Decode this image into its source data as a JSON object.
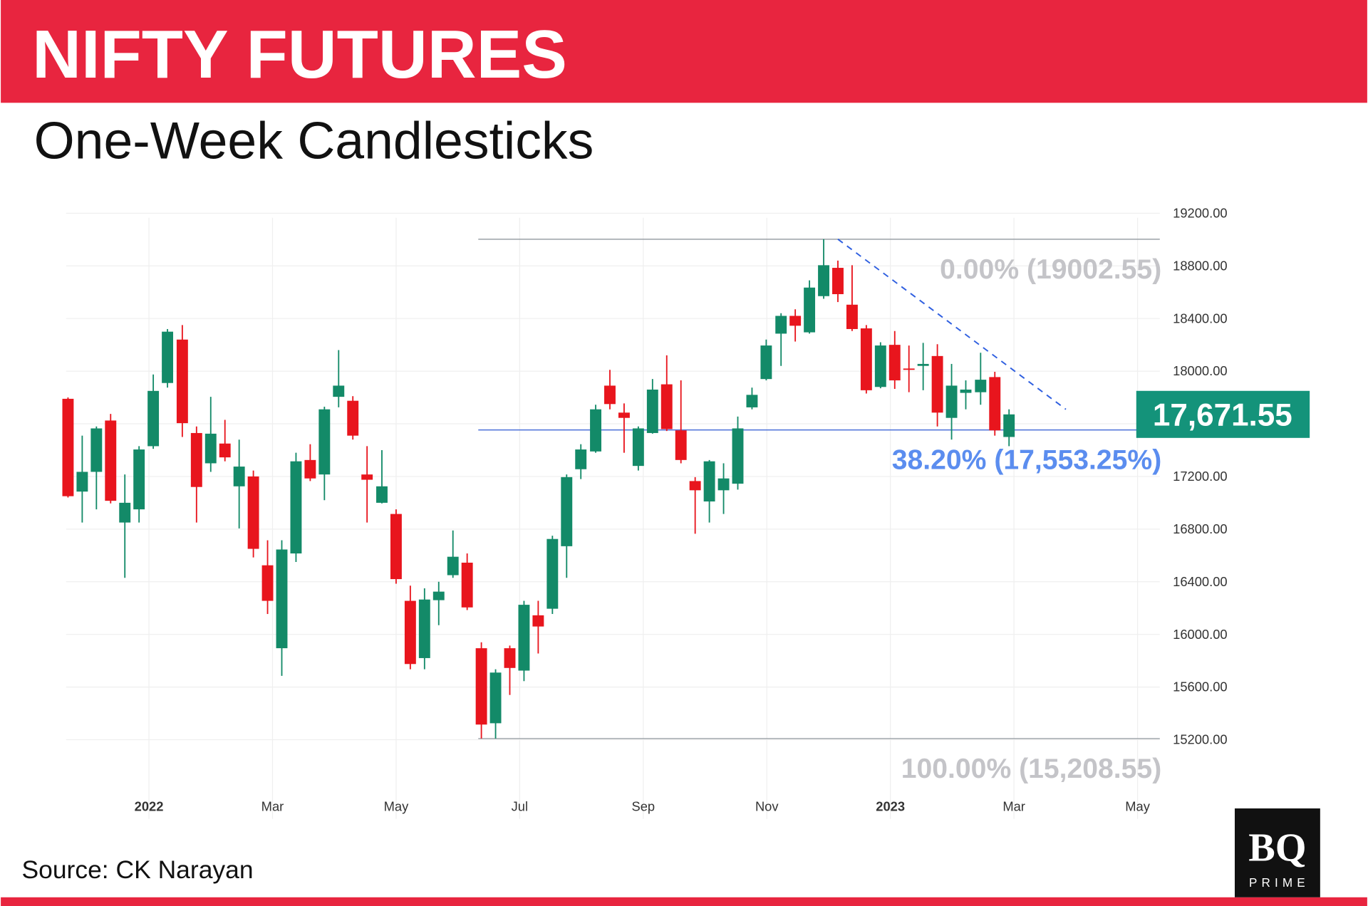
{
  "header": {
    "title": "NIFTY FUTURES",
    "subtitle": "One-Week Candlesticks"
  },
  "source": "Source: CK Narayan",
  "logo": {
    "text": "BQ",
    "sub": "PRIME"
  },
  "chart_data": {
    "type": "candlestick",
    "up_color": "#138a68",
    "down_color": "#e8151d",
    "x": [
      -1.31,
      -1.08,
      -0.85,
      -0.62,
      -0.39,
      -0.16,
      0.07,
      0.3,
      0.54,
      0.77,
      1.0,
      1.23,
      1.46,
      1.69,
      1.92,
      2.15,
      2.38,
      2.61,
      2.84,
      3.07,
      3.3,
      3.53,
      3.77,
      4.0,
      4.23,
      4.46,
      4.69,
      4.92,
      5.15,
      5.38,
      5.61,
      5.84,
      6.07,
      6.3,
      6.53,
      6.76,
      6.99,
      7.23,
      7.46,
      7.69,
      7.92,
      8.15,
      8.38,
      8.61,
      8.84,
      9.07,
      9.3,
      9.53,
      9.76,
      9.99,
      10.23,
      10.46,
      10.69,
      10.92,
      11.15,
      11.38,
      11.61,
      11.84,
      12.07,
      12.3,
      12.53,
      12.76,
      12.99,
      13.22,
      13.46,
      13.69,
      13.92
    ],
    "open": [
      17790,
      17085,
      17235,
      17625,
      16850,
      16950,
      17430,
      17910,
      18240,
      17530,
      17300,
      17450,
      17125,
      17200,
      16525,
      15895,
      16615,
      17325,
      17215,
      17805,
      17775,
      17215,
      17000,
      16915,
      16255,
      15820,
      16260,
      16450,
      16545,
      15895,
      15325,
      15895,
      15725,
      16145,
      16195,
      16670,
      17255,
      17390,
      17890,
      17685,
      17280,
      17530,
      17900,
      17550,
      17165,
      17010,
      17095,
      17145,
      17725,
      17940,
      18285,
      18420,
      18295,
      18570,
      18785,
      18505,
      18325,
      17880,
      18200,
      18020,
      18040,
      18115,
      17645,
      17835,
      17840,
      17955,
      17500
    ],
    "high": [
      17800,
      17510,
      17580,
      17675,
      17215,
      17430,
      17975,
      18320,
      18350,
      17580,
      17805,
      17630,
      17480,
      17245,
      16715,
      16715,
      17380,
      17445,
      17730,
      18160,
      17810,
      17430,
      17400,
      16950,
      16370,
      16350,
      16400,
      16790,
      16615,
      15940,
      15735,
      15915,
      16255,
      16255,
      16750,
      17215,
      17445,
      17745,
      18010,
      17755,
      17580,
      17940,
      18120,
      17930,
      17195,
      17325,
      17300,
      17655,
      17875,
      18240,
      18440,
      18470,
      18690,
      19002.55,
      18840,
      18805,
      18350,
      18220,
      18305,
      18195,
      18215,
      18205,
      18055,
      17930,
      18140,
      17995,
      17710
    ],
    "low": [
      17040,
      16850,
      16950,
      16995,
      16430,
      16850,
      17410,
      17875,
      17500,
      16850,
      17235,
      17315,
      16805,
      16585,
      16155,
      15685,
      16550,
      17165,
      17020,
      17725,
      17480,
      16850,
      16995,
      16385,
      15735,
      15735,
      16070,
      16430,
      16185,
      15208.55,
      15208.55,
      15540,
      15645,
      15855,
      16155,
      16430,
      17180,
      17380,
      17710,
      17380,
      17245,
      17525,
      17545,
      17300,
      16765,
      16850,
      16915,
      17100,
      17710,
      17930,
      18040,
      18225,
      18285,
      18550,
      18525,
      18305,
      17830,
      17870,
      17865,
      17840,
      17855,
      17580,
      17480,
      17710,
      17745,
      17510,
      17430
    ],
    "close": [
      17050,
      17235,
      17565,
      17015,
      17000,
      17405,
      17850,
      18300,
      17605,
      17120,
      17525,
      17345,
      17275,
      16650,
      16255,
      16645,
      17315,
      17185,
      17710,
      17890,
      17510,
      17175,
      17125,
      16420,
      15775,
      16265,
      16325,
      16590,
      16205,
      15315,
      15710,
      15745,
      16225,
      16060,
      16725,
      17195,
      17405,
      17710,
      17750,
      17645,
      17565,
      17860,
      17560,
      17325,
      17095,
      17315,
      17185,
      17565,
      17820,
      18195,
      18420,
      18345,
      18635,
      18805,
      18585,
      18320,
      17855,
      18195,
      17930,
      18010,
      18055,
      17685,
      17890,
      17860,
      17935,
      17550,
      17671.55
    ],
    "xlim": [
      -1.34,
      16.36
    ],
    "xticks": [
      {
        "value": 0,
        "label": "2022"
      },
      {
        "value": 2,
        "label": "Mar"
      },
      {
        "value": 4,
        "label": "May"
      },
      {
        "value": 6,
        "label": "Jul"
      },
      {
        "value": 8,
        "label": "Sep"
      },
      {
        "value": 10,
        "label": "Nov"
      },
      {
        "value": 12,
        "label": "2023"
      },
      {
        "value": 14,
        "label": "Mar"
      },
      {
        "value": 16,
        "label": "May"
      }
    ],
    "ylim": [
      14830,
      19430
    ],
    "yticks": [
      {
        "value": 15200,
        "label": "15200.00"
      },
      {
        "value": 15600,
        "label": "15600.00"
      },
      {
        "value": 16000,
        "label": "16000.00"
      },
      {
        "value": 16400,
        "label": "16400.00"
      },
      {
        "value": 16800,
        "label": "16800.00"
      },
      {
        "value": 17200,
        "label": "17200.00"
      },
      {
        "value": 17600,
        "label": "17600.00"
      },
      {
        "value": 18000,
        "label": "18000.00"
      },
      {
        "value": 18400,
        "label": "18400.00"
      },
      {
        "value": 18800,
        "label": "18800.00"
      },
      {
        "value": 19200,
        "label": "19200.00"
      }
    ],
    "grid": true,
    "level_start_x": 5.33,
    "levels": [
      {
        "value": 19002.55,
        "label": "0.00% (19002.55)",
        "color": "#c4c4c8",
        "line_color": "#9aa0a6"
      },
      {
        "value": 17553.25,
        "label": "38.20% (17,553.25%)",
        "color": "#5b8def",
        "line_color": "#4a6fd8"
      },
      {
        "value": 15208.55,
        "label": "100.00% (15,208.55)",
        "color": "#c4c4c8",
        "line_color": "#9aa0a6"
      }
    ],
    "trendline": {
      "x": [
        11.15,
        14.84
      ],
      "y": [
        19002.55,
        17710
      ],
      "color": "#2f5fe0"
    },
    "last_price": {
      "value": 17671.55,
      "label": "17,671.55",
      "color": "#14937a"
    }
  }
}
